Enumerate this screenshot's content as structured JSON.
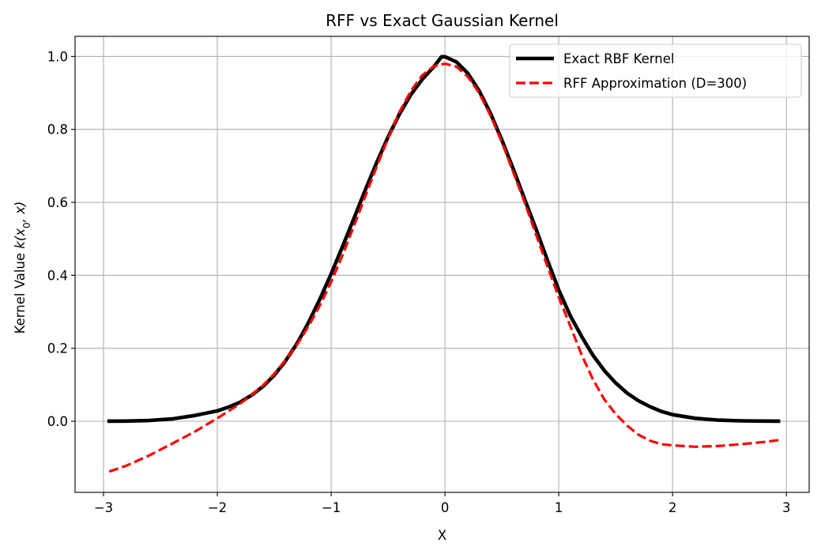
{
  "chart_data": {
    "type": "line",
    "title": "RFF vs Exact Gaussian Kernel",
    "xlabel": "X",
    "ylabel_prefix": "Kernel Value ",
    "ylabel_math": "k(x0, x)",
    "xlim": [
      -3.25,
      3.2
    ],
    "ylim": [
      -0.195,
      1.055
    ],
    "xticks": [
      -3,
      -2,
      -1,
      0,
      1,
      2,
      3
    ],
    "xtick_labels": [
      "−3",
      "−2",
      "−1",
      "0",
      "1",
      "2",
      "3"
    ],
    "yticks": [
      0.0,
      0.2,
      0.4,
      0.6,
      0.8,
      1.0
    ],
    "ytick_labels": [
      "0.0",
      "0.2",
      "0.4",
      "0.6",
      "0.8",
      "1.0"
    ],
    "grid": true,
    "legend_position": "top-right",
    "series": [
      {
        "name": "Exact RBF Kernel",
        "color": "#000000",
        "style": "solid",
        "x": [
          -2.95,
          -2.8,
          -2.6,
          -2.4,
          -2.2,
          -2.0,
          -1.9,
          -1.8,
          -1.7,
          -1.6,
          -1.5,
          -1.4,
          -1.3,
          -1.2,
          -1.1,
          -1.0,
          -0.9,
          -0.8,
          -0.7,
          -0.6,
          -0.5,
          -0.4,
          -0.3,
          -0.2,
          -0.1,
          -0.03,
          0.0,
          0.1,
          0.2,
          0.3,
          0.4,
          0.5,
          0.6,
          0.7,
          0.8,
          0.9,
          1.0,
          1.1,
          1.2,
          1.3,
          1.4,
          1.5,
          1.6,
          1.7,
          1.8,
          1.9,
          2.0,
          2.2,
          2.4,
          2.6,
          2.8,
          2.93
        ],
        "y": [
          0.0001,
          0.0005,
          0.0019,
          0.0062,
          0.0155,
          0.0283,
          0.039,
          0.052,
          0.071,
          0.095,
          0.126,
          0.166,
          0.213,
          0.27,
          0.334,
          0.404,
          0.479,
          0.556,
          0.634,
          0.709,
          0.779,
          0.842,
          0.895,
          0.937,
          0.971,
          0.999,
          0.999,
          0.985,
          0.954,
          0.906,
          0.844,
          0.771,
          0.692,
          0.609,
          0.527,
          0.442,
          0.36,
          0.29,
          0.233,
          0.181,
          0.139,
          0.105,
          0.077,
          0.056,
          0.04,
          0.027,
          0.018,
          0.008,
          0.003,
          0.001,
          0.0003,
          0.0001
        ]
      },
      {
        "name": "RFF Approximation (D=300)",
        "color": "#ff0000",
        "style": "dashed",
        "x": [
          -2.95,
          -2.8,
          -2.6,
          -2.4,
          -2.2,
          -2.0,
          -1.9,
          -1.8,
          -1.7,
          -1.6,
          -1.5,
          -1.4,
          -1.3,
          -1.2,
          -1.1,
          -1.0,
          -0.9,
          -0.8,
          -0.7,
          -0.6,
          -0.5,
          -0.4,
          -0.3,
          -0.2,
          -0.1,
          0.0,
          0.1,
          0.2,
          0.3,
          0.4,
          0.5,
          0.6,
          0.7,
          0.8,
          0.9,
          1.0,
          1.1,
          1.2,
          1.3,
          1.4,
          1.5,
          1.6,
          1.7,
          1.8,
          1.9,
          2.0,
          2.1,
          2.2,
          2.4,
          2.6,
          2.8,
          2.93
        ],
        "y": [
          -0.138,
          -0.122,
          -0.094,
          -0.062,
          -0.029,
          0.008,
          0.028,
          0.048,
          0.072,
          0.098,
          0.13,
          0.168,
          0.21,
          0.26,
          0.317,
          0.382,
          0.455,
          0.535,
          0.617,
          0.698,
          0.775,
          0.848,
          0.905,
          0.948,
          0.973,
          0.98,
          0.972,
          0.945,
          0.9,
          0.838,
          0.765,
          0.683,
          0.6,
          0.512,
          0.425,
          0.34,
          0.262,
          0.183,
          0.115,
          0.06,
          0.02,
          -0.012,
          -0.037,
          -0.053,
          -0.063,
          -0.066,
          -0.068,
          -0.07,
          -0.068,
          -0.063,
          -0.057,
          -0.052
        ]
      }
    ]
  }
}
